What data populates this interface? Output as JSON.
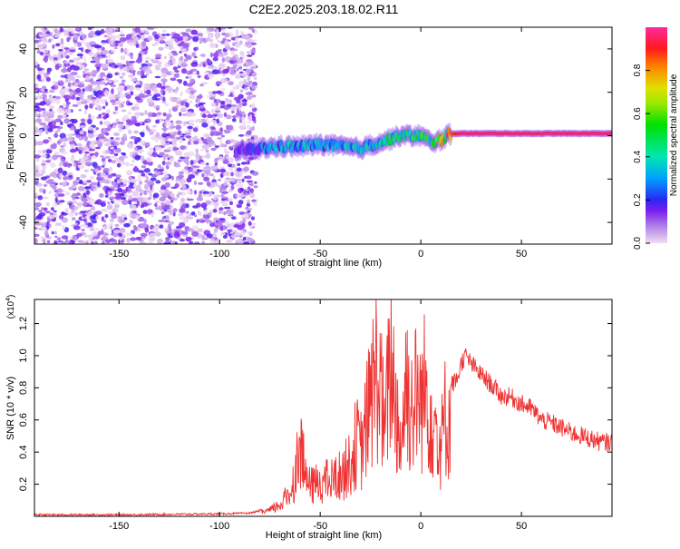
{
  "title": "C2E2.2025.203.18.02.R11",
  "colors": {
    "snr_line": "#ee3333",
    "frame": "#000000",
    "scatter_base": "#7a1ff0"
  },
  "chart_data": [
    {
      "type": "heatmap",
      "xlabel": "Height of straight line (km)",
      "ylabel": "Frequency (Hz)",
      "xlim": [
        -192,
        95
      ],
      "ylim": [
        -50,
        50
      ],
      "xticks": [
        -150,
        -100,
        -50,
        0,
        50
      ],
      "xtick_labels": [
        "-150",
        "-100",
        "-50",
        "0",
        "50"
      ],
      "yticks": [
        -40,
        -20,
        0,
        20,
        40
      ],
      "ytick_labels": [
        "-40",
        "-20",
        "0",
        "20",
        "40"
      ],
      "noise_region": {
        "x_from": -192,
        "x_to": -82,
        "y_from": -50,
        "y_to": 50
      },
      "ridge": {
        "x": [
          -90,
          -80,
          -70,
          -60,
          -50,
          -40,
          -30,
          -20,
          -10,
          0,
          5,
          10,
          15,
          20,
          95
        ],
        "y": [
          -7,
          -6,
          -5,
          -5,
          -4,
          -5,
          -6,
          -3,
          0,
          0,
          -3,
          -2,
          1,
          1,
          1
        ],
        "amplitude": [
          0.15,
          0.3,
          0.32,
          0.35,
          0.35,
          0.38,
          0.4,
          0.42,
          0.45,
          0.5,
          0.55,
          0.7,
          0.85,
          0.95,
          0.95
        ]
      },
      "colorbar": {
        "label": "Normalized spectral amplitude",
        "range": [
          0,
          1
        ],
        "ticks": [
          0.0,
          0.2,
          0.4,
          0.6,
          0.8
        ],
        "tick_labels": [
          "0.0",
          "0.2",
          "0.4",
          "0.6",
          "0.8"
        ]
      },
      "grid": false
    },
    {
      "type": "line",
      "xlabel": "Height of straight line (km)",
      "ylabel": "SNR (10 * v/v)",
      "multiplier_label": "(x10",
      "multiplier_exp": "4",
      "multiplier_close": ")",
      "xlim": [
        -192,
        95
      ],
      "ylim": [
        0,
        1.35
      ],
      "xticks": [
        -150,
        -100,
        -50,
        0,
        50
      ],
      "xtick_labels": [
        "-150",
        "-100",
        "-50",
        "0",
        "50"
      ],
      "yticks": [
        0.2,
        0.4,
        0.6,
        0.8,
        1.0,
        1.2
      ],
      "ytick_labels": [
        "0.2",
        "0.4",
        "0.6",
        "0.8",
        "1.0",
        "1.2"
      ],
      "series": [
        {
          "x": [
            -192,
            -150,
            -100,
            -85,
            -75,
            -70,
            -65,
            -62,
            -60,
            -58,
            -55,
            -50,
            -45,
            -40,
            -35,
            -32,
            -30,
            -27,
            -25,
            -22,
            -20,
            -18,
            -15,
            -12,
            -10,
            -7,
            -5,
            -2,
            0,
            2,
            5,
            8,
            10,
            12,
            15,
            18,
            20,
            22,
            25,
            30,
            35,
            40,
            45,
            50,
            55,
            60,
            65,
            70,
            75,
            80,
            85,
            90,
            95
          ],
          "y": [
            0.01,
            0.01,
            0.015,
            0.02,
            0.05,
            0.1,
            0.2,
            0.4,
            0.66,
            0.4,
            0.25,
            0.3,
            0.3,
            0.35,
            0.45,
            0.65,
            0.55,
            0.8,
            1.0,
            1.25,
            1.1,
            0.7,
            1.35,
            0.9,
            0.6,
            1.2,
            0.9,
            1.05,
            0.95,
            1.1,
            0.9,
            0.75,
            0.6,
            0.85,
            0.82,
            0.85,
            0.95,
            1.0,
            0.95,
            0.88,
            0.82,
            0.75,
            0.74,
            0.7,
            0.67,
            0.6,
            0.58,
            0.55,
            0.52,
            0.5,
            0.48,
            0.46,
            0.46
          ]
        }
      ],
      "grid": false
    }
  ]
}
